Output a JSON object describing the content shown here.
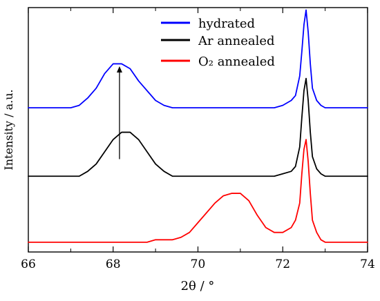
{
  "chart_data": {
    "type": "line",
    "title": "",
    "xlabel": "2θ / °",
    "ylabel": "Intensity / a.u.",
    "xlim": [
      66,
      74
    ],
    "x_ticks": [
      66,
      68,
      70,
      72,
      74
    ],
    "y_ticks_labeled": false,
    "grid": false,
    "legend": {
      "placement": "top-right",
      "entries": [
        {
          "label": "hydrated",
          "color": "#0000ff"
        },
        {
          "label": "Ar annealed",
          "color": "#000000"
        },
        {
          "label": "O₂ annealed",
          "color": "#ff0000"
        }
      ]
    },
    "annotations": [
      {
        "type": "arrow",
        "from": [
          68.15,
          0.38
        ],
        "to": [
          68.15,
          0.76
        ]
      }
    ],
    "series": [
      {
        "name": "hydrated",
        "color": "#0000ff",
        "x": [
          66.0,
          66.2,
          66.4,
          66.6,
          66.8,
          67.0,
          67.2,
          67.4,
          67.6,
          67.8,
          68.0,
          68.2,
          68.4,
          68.6,
          68.8,
          69.0,
          69.2,
          69.4,
          69.6,
          69.8,
          70.0,
          70.2,
          70.4,
          70.6,
          70.8,
          71.0,
          71.2,
          71.4,
          71.6,
          71.8,
          72.0,
          72.2,
          72.3,
          72.4,
          72.45,
          72.5,
          72.55,
          72.6,
          72.65,
          72.7,
          72.8,
          72.9,
          73.0,
          73.2,
          73.4,
          73.6,
          73.8,
          74.0
        ],
        "values": [
          0.59,
          0.59,
          0.59,
          0.59,
          0.59,
          0.59,
          0.6,
          0.63,
          0.67,
          0.73,
          0.77,
          0.77,
          0.75,
          0.7,
          0.66,
          0.62,
          0.6,
          0.59,
          0.59,
          0.59,
          0.59,
          0.59,
          0.59,
          0.59,
          0.59,
          0.59,
          0.59,
          0.59,
          0.59,
          0.59,
          0.6,
          0.62,
          0.64,
          0.72,
          0.82,
          0.93,
          0.99,
          0.9,
          0.77,
          0.67,
          0.62,
          0.6,
          0.59,
          0.59,
          0.59,
          0.59,
          0.59,
          0.59
        ]
      },
      {
        "name": "Ar annealed",
        "color": "#000000",
        "x": [
          66.0,
          66.2,
          66.4,
          66.6,
          66.8,
          67.0,
          67.2,
          67.4,
          67.6,
          67.8,
          68.0,
          68.2,
          68.4,
          68.6,
          68.8,
          69.0,
          69.2,
          69.4,
          69.6,
          69.8,
          70.0,
          70.2,
          70.4,
          70.6,
          70.8,
          71.0,
          71.2,
          71.4,
          71.6,
          71.8,
          72.0,
          72.2,
          72.3,
          72.4,
          72.45,
          72.5,
          72.55,
          72.6,
          72.65,
          72.7,
          72.8,
          72.9,
          73.0,
          73.2,
          73.4,
          73.6,
          73.8,
          74.0
        ],
        "values": [
          0.31,
          0.31,
          0.31,
          0.31,
          0.31,
          0.31,
          0.31,
          0.33,
          0.36,
          0.41,
          0.46,
          0.49,
          0.49,
          0.46,
          0.41,
          0.36,
          0.33,
          0.31,
          0.31,
          0.31,
          0.31,
          0.31,
          0.31,
          0.31,
          0.31,
          0.31,
          0.31,
          0.31,
          0.31,
          0.31,
          0.32,
          0.33,
          0.35,
          0.43,
          0.55,
          0.66,
          0.71,
          0.62,
          0.49,
          0.39,
          0.34,
          0.32,
          0.31,
          0.31,
          0.31,
          0.31,
          0.31,
          0.31
        ]
      },
      {
        "name": "O₂ annealed",
        "color": "#ff0000",
        "x": [
          66.0,
          66.2,
          66.4,
          66.6,
          66.8,
          67.0,
          67.2,
          67.4,
          67.6,
          67.8,
          68.0,
          68.2,
          68.4,
          68.6,
          68.8,
          69.0,
          69.2,
          69.4,
          69.6,
          69.8,
          70.0,
          70.2,
          70.4,
          70.6,
          70.8,
          71.0,
          71.2,
          71.4,
          71.6,
          71.8,
          72.0,
          72.2,
          72.3,
          72.4,
          72.45,
          72.5,
          72.55,
          72.6,
          72.65,
          72.7,
          72.8,
          72.9,
          73.0,
          73.2,
          73.4,
          73.6,
          73.8,
          74.0
        ],
        "values": [
          0.04,
          0.04,
          0.04,
          0.04,
          0.04,
          0.04,
          0.04,
          0.04,
          0.04,
          0.04,
          0.04,
          0.04,
          0.04,
          0.04,
          0.04,
          0.05,
          0.05,
          0.05,
          0.06,
          0.08,
          0.12,
          0.16,
          0.2,
          0.23,
          0.24,
          0.24,
          0.21,
          0.15,
          0.1,
          0.08,
          0.08,
          0.1,
          0.13,
          0.2,
          0.32,
          0.42,
          0.46,
          0.37,
          0.24,
          0.13,
          0.08,
          0.05,
          0.04,
          0.04,
          0.04,
          0.04,
          0.04,
          0.04
        ]
      }
    ]
  }
}
